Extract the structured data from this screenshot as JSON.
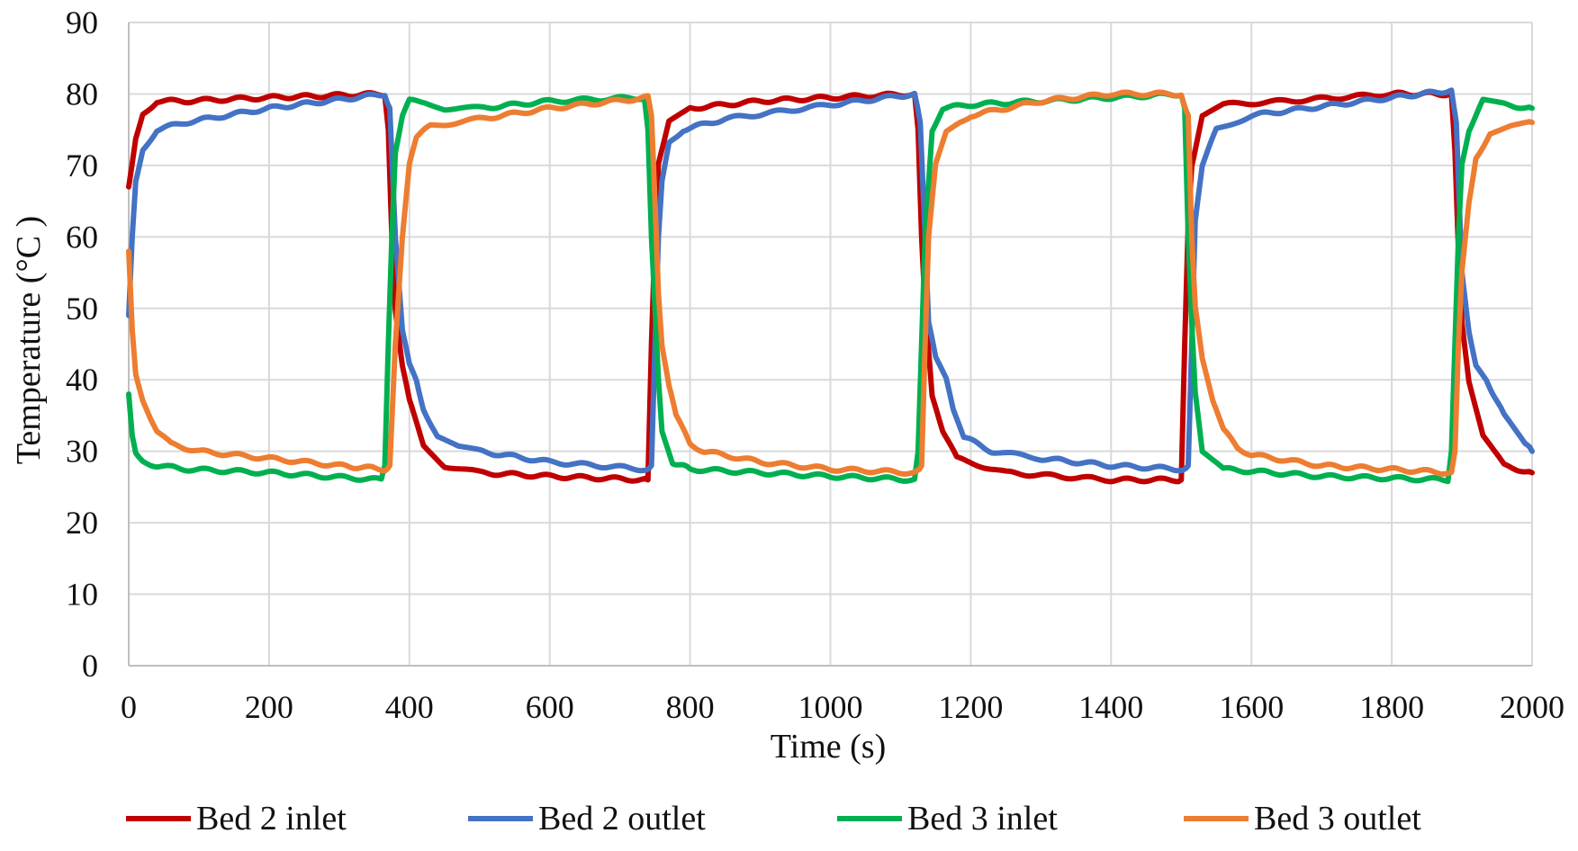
{
  "chart_data": {
    "type": "line",
    "title": "",
    "xlabel": "Time (s)",
    "ylabel": "Temperature  (°C )",
    "xlim": [
      0,
      2000
    ],
    "ylim": [
      0,
      90
    ],
    "xticks": [
      0,
      200,
      400,
      600,
      800,
      1000,
      1200,
      1400,
      1600,
      1800,
      2000
    ],
    "yticks": [
      0,
      10,
      20,
      30,
      40,
      50,
      60,
      70,
      80,
      90
    ],
    "grid": true,
    "legend_position": "bottom",
    "series": [
      {
        "name": "Bed 2 inlet",
        "color": "#c00000",
        "x": [
          0,
          10,
          20,
          40,
          80,
          200,
          365,
          370,
          375,
          380,
          390,
          400,
          420,
          450,
          500,
          600,
          740,
          745,
          750,
          755,
          770,
          800,
          900,
          1000,
          1120,
          1125,
          1130,
          1135,
          1145,
          1160,
          1180,
          1250,
          1400,
          1500,
          1505,
          1510,
          1515,
          1530,
          1560,
          1650,
          1800,
          1885,
          1890,
          1895,
          1900,
          1910,
          1930,
          1960,
          2000
        ],
        "y": [
          67,
          74,
          77,
          79,
          79,
          79.5,
          80,
          75,
          60,
          50,
          42,
          37,
          31,
          28,
          27,
          26.5,
          26,
          45,
          60,
          70,
          76,
          78,
          79,
          79.5,
          80,
          75,
          60,
          50,
          38,
          33,
          29,
          27,
          26,
          26,
          45,
          62,
          70,
          77,
          78.5,
          79,
          80,
          80,
          72,
          58,
          48,
          40,
          32,
          28,
          27
        ]
      },
      {
        "name": "Bed 2 outlet",
        "color": "#4472c4",
        "x": [
          0,
          5,
          10,
          20,
          40,
          80,
          200,
          365,
          372,
          380,
          390,
          400,
          410,
          420,
          440,
          470,
          500,
          600,
          735,
          745,
          750,
          755,
          760,
          770,
          790,
          850,
          1000,
          1120,
          1128,
          1135,
          1140,
          1150,
          1165,
          1175,
          1190,
          1230,
          1300,
          1400,
          1500,
          1510,
          1515,
          1520,
          1530,
          1550,
          1600,
          1800,
          1885,
          1892,
          1900,
          1910,
          1920,
          1935,
          1960,
          1990,
          2000
        ],
        "y": [
          49,
          60,
          68,
          72,
          75,
          76,
          78,
          80,
          78,
          60,
          47,
          42,
          40,
          36,
          32,
          30.5,
          30,
          28.5,
          27.5,
          28,
          45,
          60,
          68,
          73,
          75,
          76.5,
          78.5,
          80,
          76,
          60,
          48,
          43,
          40,
          36,
          32,
          30,
          29,
          28,
          27.5,
          28,
          45,
          62,
          70,
          75,
          77,
          79.5,
          80.5,
          76,
          55,
          47,
          42,
          40,
          35,
          31,
          30
        ]
      },
      {
        "name": "Bed 3 inlet",
        "color": "#00b050",
        "x": [
          0,
          5,
          10,
          20,
          40,
          80,
          200,
          360,
          365,
          370,
          375,
          380,
          390,
          400,
          420,
          450,
          500,
          600,
          735,
          740,
          745,
          750,
          755,
          760,
          775,
          800,
          900,
          1000,
          1120,
          1125,
          1130,
          1135,
          1145,
          1160,
          1200,
          1300,
          1400,
          1500,
          1505,
          1510,
          1515,
          1520,
          1530,
          1560,
          1700,
          1880,
          1885,
          1890,
          1895,
          1900,
          1910,
          1930,
          1960,
          2000
        ],
        "y": [
          38,
          32,
          30,
          28.5,
          28,
          27.5,
          27,
          26,
          28,
          45,
          60,
          72,
          77,
          79,
          79,
          78,
          78,
          79,
          79.5,
          75,
          60,
          50,
          40,
          33,
          28.5,
          27.5,
          27,
          26.5,
          26,
          30,
          45,
          60,
          75,
          78,
          78.5,
          79,
          79.5,
          80,
          78,
          60,
          48,
          38,
          30,
          27.5,
          26.5,
          26,
          30,
          45,
          60,
          70,
          75,
          79,
          78.5,
          78
        ]
      },
      {
        "name": "Bed 3 outlet",
        "color": "#ed7d31",
        "x": [
          0,
          5,
          10,
          20,
          40,
          60,
          80,
          100,
          200,
          300,
          365,
          372,
          380,
          390,
          400,
          410,
          430,
          500,
          600,
          740,
          745,
          750,
          755,
          760,
          770,
          780,
          800,
          820,
          900,
          1000,
          1120,
          1130,
          1135,
          1140,
          1150,
          1165,
          1180,
          1200,
          1300,
          1400,
          1500,
          1510,
          1515,
          1520,
          1530,
          1545,
          1560,
          1580,
          1600,
          1700,
          1885,
          1890,
          1895,
          1900,
          1910,
          1920,
          1940,
          1970,
          2000
        ],
        "y": [
          58,
          47,
          41,
          37,
          33,
          31,
          30.5,
          30,
          29,
          28,
          27.5,
          28,
          45,
          60,
          70,
          74,
          75.5,
          76.5,
          78,
          79.5,
          77,
          65,
          52,
          45,
          39,
          35,
          31,
          30,
          28.5,
          27.5,
          27,
          28,
          45,
          60,
          70,
          74.5,
          75.5,
          77,
          79,
          80,
          80,
          77,
          60,
          50,
          43,
          37,
          33,
          30.5,
          29.5,
          28,
          27,
          30,
          45,
          55,
          65,
          71,
          74.5,
          75.5,
          76
        ]
      }
    ]
  }
}
